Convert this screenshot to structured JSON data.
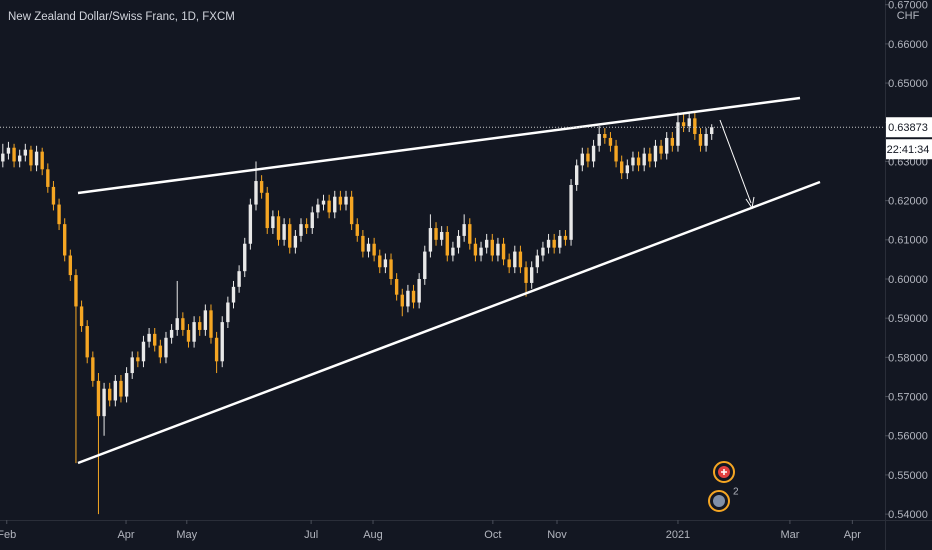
{
  "chart_data": {
    "type": "candlestick",
    "title": "New Zealand Dollar/Swiss Franc, 1D, FXCM",
    "currency": "CHF",
    "countdown": "22:41:34",
    "event_count": 2,
    "up_color": "#e8e8e8",
    "down_color": "#f5a623",
    "xlim": [
      -0.5,
      156.8
    ],
    "ylim": [
      0.5385,
      0.6712
    ],
    "xticks": [
      {
        "value": 0.7,
        "label": "Feb"
      },
      {
        "value": 21.9,
        "label": "Apr"
      },
      {
        "value": 32.7,
        "label": "May"
      },
      {
        "value": 54.8,
        "label": "Jul"
      },
      {
        "value": 65.8,
        "label": "Aug"
      },
      {
        "value": 87.1,
        "label": "Oct"
      },
      {
        "value": 98.5,
        "label": "Nov"
      },
      {
        "value": 120.0,
        "label": "2021"
      },
      {
        "value": 139.9,
        "label": "Mar"
      },
      {
        "value": 151.0,
        "label": "Apr"
      }
    ],
    "yticks": [
      {
        "value": 0.54,
        "label": "0.54000"
      },
      {
        "value": 0.55,
        "label": "0.55000"
      },
      {
        "value": 0.56,
        "label": "0.56000"
      },
      {
        "value": 0.57,
        "label": "0.57000"
      },
      {
        "value": 0.58,
        "label": "0.58000"
      },
      {
        "value": 0.59,
        "label": "0.59000"
      },
      {
        "value": 0.6,
        "label": "0.60000"
      },
      {
        "value": 0.61,
        "label": "0.61000"
      },
      {
        "value": 0.62,
        "label": "0.62000"
      },
      {
        "value": 0.63,
        "label": "0.63000"
      },
      {
        "value": 0.64,
        "label": "0.64000"
      },
      {
        "value": 0.65,
        "label": "0.65000"
      },
      {
        "value": 0.66,
        "label": "0.66000"
      },
      {
        "value": 0.67,
        "label": "0.67000"
      }
    ],
    "series": [
      {
        "values": [
          [
            0.63,
            0.6345,
            0.6285,
            0.632
          ],
          [
            0.632,
            0.635,
            0.6305,
            0.6335
          ],
          [
            0.6335,
            0.6345,
            0.6285,
            0.63
          ],
          [
            0.63,
            0.633,
            0.6285,
            0.6315
          ],
          [
            0.6315,
            0.6345,
            0.63,
            0.633
          ],
          [
            0.633,
            0.634,
            0.6275,
            0.629
          ],
          [
            0.629,
            0.634,
            0.6275,
            0.6325
          ],
          [
            0.6325,
            0.6335,
            0.6265,
            0.628
          ],
          [
            0.628,
            0.6295,
            0.622,
            0.6235
          ],
          [
            0.6235,
            0.625,
            0.6175,
            0.619
          ],
          [
            0.619,
            0.6205,
            0.6125,
            0.614
          ],
          [
            0.614,
            0.6155,
            0.6045,
            0.606
          ],
          [
            0.606,
            0.6075,
            0.5995,
            0.601
          ],
          [
            0.601,
            0.6025,
            0.553,
            0.593
          ],
          [
            0.593,
            0.5945,
            0.5865,
            0.588
          ],
          [
            0.588,
            0.5895,
            0.5785,
            0.58
          ],
          [
            0.58,
            0.5815,
            0.5725,
            0.574
          ],
          [
            0.574,
            0.576,
            0.54,
            0.565
          ],
          [
            0.565,
            0.5735,
            0.56,
            0.572
          ],
          [
            0.572,
            0.5735,
            0.5675,
            0.569
          ],
          [
            0.569,
            0.5755,
            0.5675,
            0.574
          ],
          [
            0.574,
            0.5755,
            0.5685,
            0.57
          ],
          [
            0.57,
            0.5775,
            0.5685,
            0.576
          ],
          [
            0.576,
            0.5815,
            0.5745,
            0.58
          ],
          [
            0.58,
            0.5815,
            0.5775,
            0.579
          ],
          [
            0.579,
            0.5855,
            0.5775,
            0.584
          ],
          [
            0.584,
            0.5875,
            0.5825,
            0.586
          ],
          [
            0.586,
            0.5875,
            0.5815,
            0.583
          ],
          [
            0.583,
            0.5845,
            0.5785,
            0.58
          ],
          [
            0.58,
            0.5865,
            0.5785,
            0.585
          ],
          [
            0.585,
            0.5885,
            0.5835,
            0.587
          ],
          [
            0.587,
            0.5995,
            0.5855,
            0.59
          ],
          [
            0.59,
            0.5915,
            0.5855,
            0.587
          ],
          [
            0.587,
            0.5885,
            0.5825,
            0.584
          ],
          [
            0.584,
            0.5905,
            0.5825,
            0.589
          ],
          [
            0.589,
            0.5905,
            0.5855,
            0.587
          ],
          [
            0.587,
            0.5935,
            0.5855,
            0.592
          ],
          [
            0.592,
            0.5935,
            0.5835,
            0.585
          ],
          [
            0.585,
            0.5865,
            0.576,
            0.579
          ],
          [
            0.579,
            0.5905,
            0.5775,
            0.589
          ],
          [
            0.589,
            0.5955,
            0.5875,
            0.594
          ],
          [
            0.594,
            0.5995,
            0.5925,
            0.598
          ],
          [
            0.598,
            0.6035,
            0.5965,
            0.602
          ],
          [
            0.602,
            0.6105,
            0.6005,
            0.609
          ],
          [
            0.609,
            0.6205,
            0.6075,
            0.619
          ],
          [
            0.619,
            0.63,
            0.6175,
            0.625
          ],
          [
            0.625,
            0.6265,
            0.6205,
            0.622
          ],
          [
            0.622,
            0.6235,
            0.6115,
            0.613
          ],
          [
            0.613,
            0.6175,
            0.6115,
            0.616
          ],
          [
            0.616,
            0.6175,
            0.6085,
            0.61
          ],
          [
            0.61,
            0.6155,
            0.6085,
            0.614
          ],
          [
            0.614,
            0.6155,
            0.6065,
            0.608
          ],
          [
            0.608,
            0.6125,
            0.6065,
            0.611
          ],
          [
            0.611,
            0.6155,
            0.6095,
            0.614
          ],
          [
            0.614,
            0.6155,
            0.6115,
            0.613
          ],
          [
            0.613,
            0.6185,
            0.6115,
            0.617
          ],
          [
            0.617,
            0.6205,
            0.6155,
            0.619
          ],
          [
            0.619,
            0.6215,
            0.6175,
            0.62
          ],
          [
            0.62,
            0.6215,
            0.6155,
            0.617
          ],
          [
            0.617,
            0.6225,
            0.6155,
            0.621
          ],
          [
            0.621,
            0.6225,
            0.6175,
            0.619
          ],
          [
            0.619,
            0.6225,
            0.6175,
            0.621
          ],
          [
            0.621,
            0.6225,
            0.6125,
            0.614
          ],
          [
            0.614,
            0.6155,
            0.6095,
            0.611
          ],
          [
            0.611,
            0.6125,
            0.6055,
            0.607
          ],
          [
            0.607,
            0.6105,
            0.6055,
            0.609
          ],
          [
            0.609,
            0.6105,
            0.6045,
            0.606
          ],
          [
            0.606,
            0.6075,
            0.6015,
            0.603
          ],
          [
            0.603,
            0.6065,
            0.6015,
            0.605
          ],
          [
            0.605,
            0.6065,
            0.5985,
            0.6
          ],
          [
            0.6,
            0.6015,
            0.5945,
            0.596
          ],
          [
            0.596,
            0.5975,
            0.5905,
            0.593
          ],
          [
            0.593,
            0.5985,
            0.5915,
            0.597
          ],
          [
            0.597,
            0.5985,
            0.5925,
            0.594
          ],
          [
            0.594,
            0.6015,
            0.5925,
            0.6
          ],
          [
            0.6,
            0.6085,
            0.5985,
            0.607
          ],
          [
            0.607,
            0.6165,
            0.6055,
            0.613
          ],
          [
            0.613,
            0.6145,
            0.6085,
            0.61
          ],
          [
            0.61,
            0.6135,
            0.6085,
            0.612
          ],
          [
            0.612,
            0.6135,
            0.6045,
            0.606
          ],
          [
            0.606,
            0.6095,
            0.6045,
            0.608
          ],
          [
            0.608,
            0.6125,
            0.6065,
            0.611
          ],
          [
            0.611,
            0.6165,
            0.6095,
            0.614
          ],
          [
            0.614,
            0.6155,
            0.6075,
            0.609
          ],
          [
            0.609,
            0.6105,
            0.6045,
            0.606
          ],
          [
            0.606,
            0.6095,
            0.6045,
            0.608
          ],
          [
            0.608,
            0.6115,
            0.6065,
            0.61
          ],
          [
            0.61,
            0.6115,
            0.6045,
            0.606
          ],
          [
            0.606,
            0.6105,
            0.6045,
            0.609
          ],
          [
            0.609,
            0.6105,
            0.6035,
            0.605
          ],
          [
            0.605,
            0.6065,
            0.6015,
            0.603
          ],
          [
            0.603,
            0.6085,
            0.6015,
            0.607
          ],
          [
            0.607,
            0.6085,
            0.6015,
            0.603
          ],
          [
            0.603,
            0.6045,
            0.5955,
            0.599
          ],
          [
            0.599,
            0.6045,
            0.5975,
            0.603
          ],
          [
            0.603,
            0.6075,
            0.6015,
            0.606
          ],
          [
            0.606,
            0.6095,
            0.6045,
            0.608
          ],
          [
            0.608,
            0.6115,
            0.6065,
            0.61
          ],
          [
            0.61,
            0.6115,
            0.6065,
            0.608
          ],
          [
            0.608,
            0.6125,
            0.6065,
            0.611
          ],
          [
            0.611,
            0.6125,
            0.6085,
            0.61
          ],
          [
            0.61,
            0.6255,
            0.6085,
            0.624
          ],
          [
            0.624,
            0.6305,
            0.6225,
            0.629
          ],
          [
            0.629,
            0.6335,
            0.6275,
            0.632
          ],
          [
            0.632,
            0.6335,
            0.6285,
            0.63
          ],
          [
            0.63,
            0.6355,
            0.6285,
            0.634
          ],
          [
            0.634,
            0.639,
            0.6325,
            0.637
          ],
          [
            0.637,
            0.6385,
            0.6345,
            0.636
          ],
          [
            0.636,
            0.6375,
            0.6325,
            0.634
          ],
          [
            0.634,
            0.6355,
            0.6285,
            0.63
          ],
          [
            0.63,
            0.6315,
            0.6255,
            0.627
          ],
          [
            0.627,
            0.6305,
            0.6255,
            0.629
          ],
          [
            0.629,
            0.6325,
            0.6275,
            0.631
          ],
          [
            0.631,
            0.6325,
            0.6275,
            0.629
          ],
          [
            0.629,
            0.6335,
            0.6275,
            0.632
          ],
          [
            0.632,
            0.6335,
            0.6285,
            0.63
          ],
          [
            0.63,
            0.6355,
            0.6285,
            0.634
          ],
          [
            0.634,
            0.6355,
            0.6305,
            0.632
          ],
          [
            0.632,
            0.6375,
            0.6305,
            0.636
          ],
          [
            0.636,
            0.6375,
            0.6325,
            0.634
          ],
          [
            0.634,
            0.6425,
            0.6325,
            0.64
          ],
          [
            0.64,
            0.642,
            0.6375,
            0.639
          ],
          [
            0.639,
            0.6425,
            0.6375,
            0.641
          ],
          [
            0.641,
            0.6425,
            0.6355,
            0.637
          ],
          [
            0.637,
            0.6385,
            0.6325,
            0.634
          ],
          [
            0.634,
            0.6385,
            0.6325,
            0.637
          ],
          [
            0.637,
            0.6395,
            0.6355,
            0.63873
          ]
        ]
      }
    ]
  }
}
